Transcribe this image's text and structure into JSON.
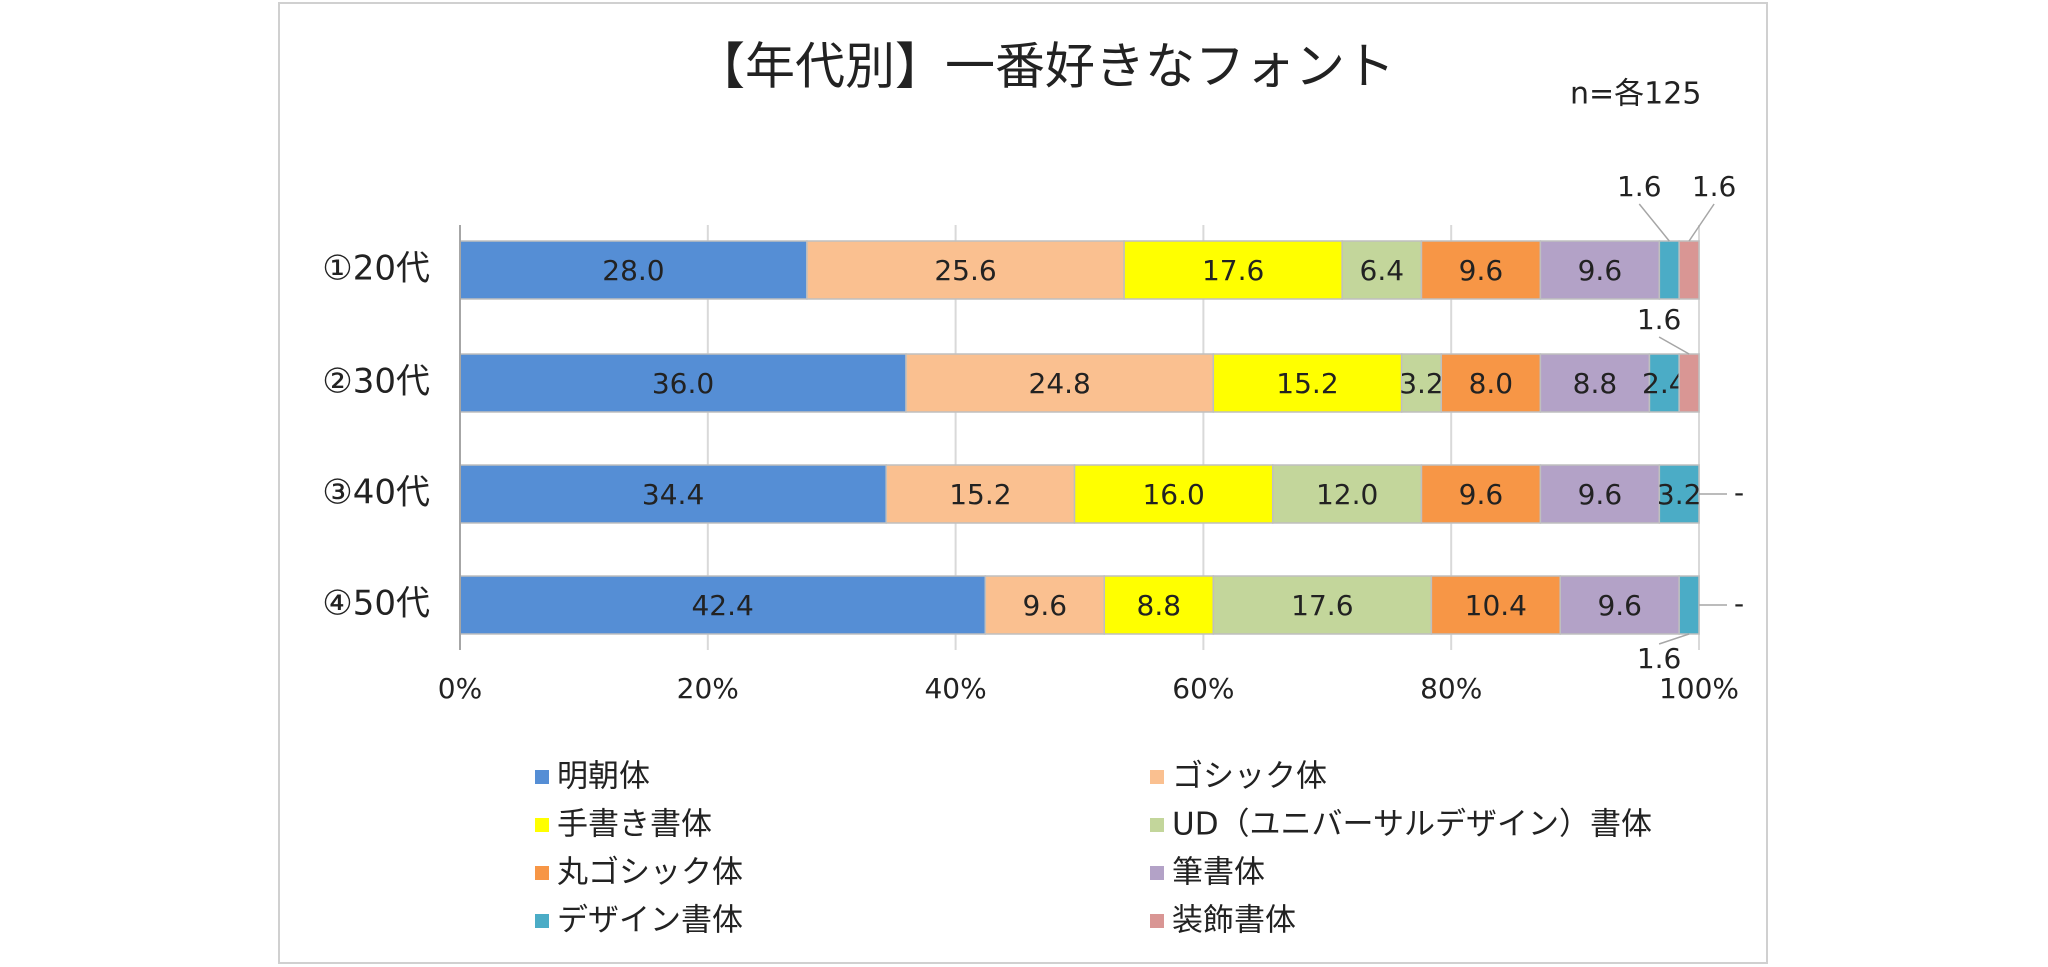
{
  "chart_data": {
    "type": "stacked-bar-horizontal",
    "title": "【年代別】一番好きなフォント",
    "subtitle": "n=各125",
    "categories": [
      "①20代",
      "②30代",
      "③40代",
      "④50代"
    ],
    "xlim": [
      0,
      100
    ],
    "xticks": [
      {
        "value": 0,
        "label": "0%"
      },
      {
        "value": 20,
        "label": "20%"
      },
      {
        "value": 40,
        "label": "40%"
      },
      {
        "value": 60,
        "label": "60%"
      },
      {
        "value": 80,
        "label": "80%"
      },
      {
        "value": 100,
        "label": "100%"
      }
    ],
    "grid": true,
    "series": [
      {
        "name": "明朝体",
        "color": "#558ed5",
        "values": [
          28.0,
          36.0,
          34.4,
          42.4
        ],
        "value_labels": [
          "28.0",
          "36.0",
          "34.4",
          "42.4"
        ]
      },
      {
        "name": "ゴシック体",
        "color": "#fac090",
        "values": [
          25.6,
          24.8,
          15.2,
          9.6
        ],
        "value_labels": [
          "25.6",
          "24.8",
          "15.2",
          "9.6"
        ]
      },
      {
        "name": "手書き書体",
        "color": "#ffff00",
        "values": [
          17.6,
          15.2,
          16.0,
          8.8
        ],
        "value_labels": [
          "17.6",
          "15.2",
          "16.0",
          "8.8"
        ]
      },
      {
        "name": "UD（ユニバーサルデザイン）書体",
        "color": "#c3d69b",
        "values": [
          6.4,
          3.2,
          12.0,
          17.6
        ],
        "value_labels": [
          "6.4",
          "3.2",
          "12.0",
          "17.6"
        ]
      },
      {
        "name": "丸ゴシック体",
        "color": "#f79646",
        "values": [
          9.6,
          8.0,
          9.6,
          10.4
        ],
        "value_labels": [
          "9.6",
          "8.0",
          "9.6",
          "10.4"
        ]
      },
      {
        "name": "筆書体",
        "color": "#b3a2c7",
        "values": [
          9.6,
          8.8,
          9.6,
          9.6
        ],
        "value_labels": [
          "9.6",
          "8.8",
          "9.6",
          "9.6"
        ]
      },
      {
        "name": "デザイン書体",
        "color": "#4bacc6",
        "values": [
          1.6,
          2.4,
          3.2,
          1.6
        ],
        "value_labels": [
          "1.6",
          "2.4",
          "3.2",
          "1.6"
        ]
      },
      {
        "name": "装飾書体",
        "color": "#d99694",
        "values": [
          1.6,
          1.6,
          0,
          0
        ],
        "value_labels": [
          "1.6",
          "1.6",
          "-",
          "-"
        ]
      }
    ]
  }
}
